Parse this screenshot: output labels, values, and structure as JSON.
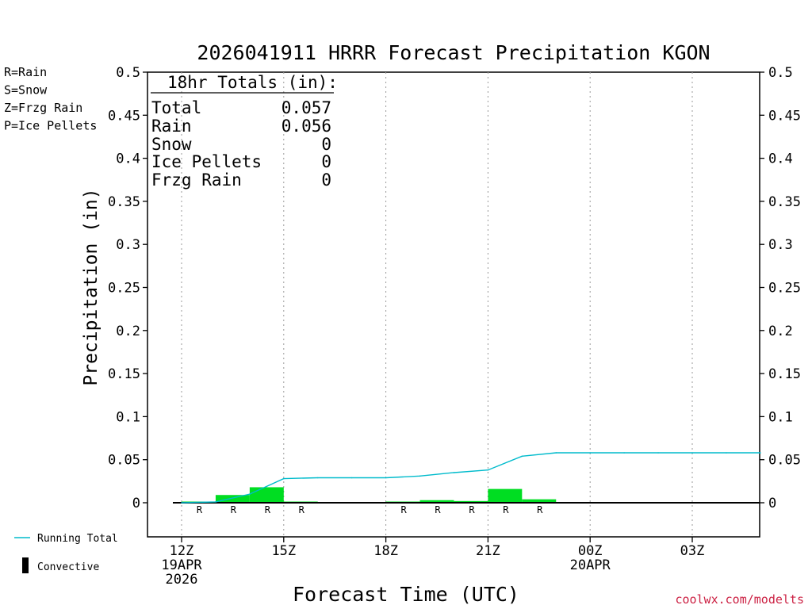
{
  "chart_data": {
    "type": "bar",
    "title": "2026041911 HRRR Forecast Precipitation KGON",
    "xlabel": "Forecast Time (UTC)",
    "ylabel": "Precipitation (in)",
    "ylim": [
      -0.04,
      0.5
    ],
    "yticks": [
      0,
      0.05,
      0.1,
      0.15,
      0.2,
      0.25,
      0.3,
      0.35,
      0.4,
      0.45,
      0.5
    ],
    "ytick_labels": [
      "0",
      "0.05",
      "0.1",
      "0.15",
      "0.2",
      "0.25",
      "0.3",
      "0.35",
      "0.4",
      "0.45",
      "0.5"
    ],
    "xlim_hours": [
      -1,
      17
    ],
    "grid": "vertical dotted at 3-hourly ticks",
    "xticks": [
      {
        "hour": 0,
        "lines": [
          "12Z",
          "19APR",
          "2026"
        ]
      },
      {
        "hour": 3,
        "lines": [
          "15Z"
        ]
      },
      {
        "hour": 6,
        "lines": [
          "18Z"
        ]
      },
      {
        "hour": 9,
        "lines": [
          "21Z"
        ]
      },
      {
        "hour": 12,
        "lines": [
          "00Z",
          "20APR"
        ]
      },
      {
        "hour": 15,
        "lines": [
          "03Z"
        ]
      }
    ],
    "hourly_precip": {
      "hours": [
        1,
        2,
        3,
        4,
        5,
        6,
        7,
        8,
        9,
        10,
        11,
        12,
        13,
        14,
        15,
        16,
        17
      ],
      "values": [
        0.001,
        0.009,
        0.018,
        0.001,
        0,
        0,
        0.001,
        0.003,
        0.002,
        0.016,
        0.004,
        0,
        0,
        0,
        0,
        0,
        0
      ],
      "ptype": [
        "R",
        "R",
        "R",
        "R",
        "",
        "",
        "R",
        "R",
        "R",
        "R",
        "R",
        "",
        "",
        "",
        "",
        "",
        ""
      ]
    },
    "running_total": {
      "name": "Running Total",
      "color": "#00bbcc",
      "x": [
        0,
        1,
        2,
        3,
        4,
        5,
        6,
        7,
        8,
        9,
        10,
        11,
        12,
        13,
        14,
        15,
        16,
        17
      ],
      "values": [
        0,
        0.001,
        0.01,
        0.028,
        0.029,
        0.029,
        0.029,
        0.031,
        0.035,
        0.038,
        0.054,
        0.058,
        0.058,
        0.058,
        0.058,
        0.058,
        0.058,
        0.058
      ]
    },
    "totals_box": {
      "header": "18hr Totals (in):",
      "rows": [
        {
          "label": "Total",
          "value": "0.057"
        },
        {
          "label": "Rain",
          "value": "0.056"
        },
        {
          "label": "Snow",
          "value": "0"
        },
        {
          "label": "Ice Pellets",
          "value": "0"
        },
        {
          "label": "Frzg Rain",
          "value": "0"
        }
      ]
    },
    "ptype_legend": [
      {
        "text": "R=Rain",
        "color": "#22cc22"
      },
      {
        "text": "S=Snow",
        "color": "#3355dd"
      },
      {
        "text": "Z=Frzg Rain",
        "color": "#ee8833"
      },
      {
        "text": "P=Ice Pellets",
        "color": "#dd2299"
      }
    ],
    "bottom_legend": {
      "running_total": "Running Total",
      "convective": "Convective"
    },
    "bar_color": "#00dd22",
    "ptype_label_color": "#22cc22"
  },
  "credit": "coolwx.com/modelts"
}
